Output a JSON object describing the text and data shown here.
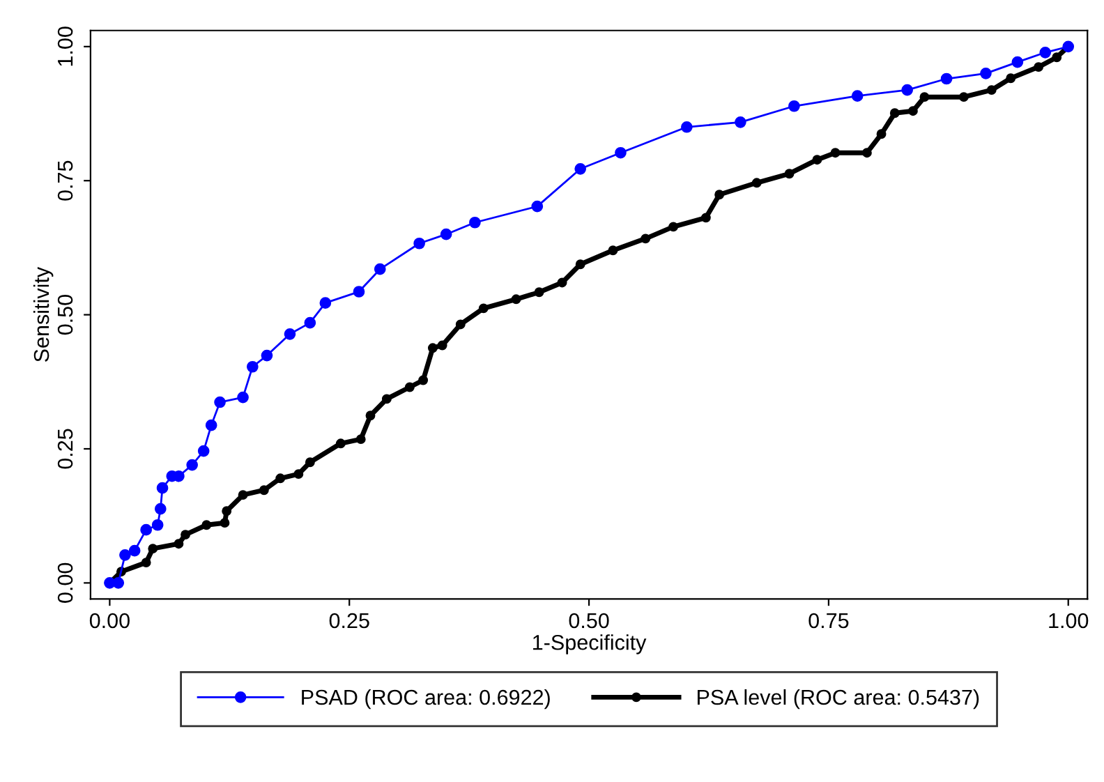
{
  "chart_data": {
    "type": "line",
    "xlabel": "1-Specificity",
    "ylabel": "Sensitivity",
    "xlim": [
      -0.02,
      1.02
    ],
    "ylim": [
      -0.03,
      1.03
    ],
    "xticks": [
      {
        "value": 0,
        "label": "0.00"
      },
      {
        "value": 0.25,
        "label": "0.25"
      },
      {
        "value": 0.5,
        "label": "0.50"
      },
      {
        "value": 0.75,
        "label": "0.75"
      },
      {
        "value": 1,
        "label": "1.00"
      }
    ],
    "yticks": [
      {
        "value": 0,
        "label": "0.00"
      },
      {
        "value": 0.25,
        "label": "0.25"
      },
      {
        "value": 0.5,
        "label": "0.50"
      },
      {
        "value": 0.75,
        "label": "0.75"
      },
      {
        "value": 1,
        "label": "1.00"
      }
    ],
    "grid": false,
    "legend": "bottom",
    "marker": "circle",
    "line_style": "solid",
    "series": [
      {
        "name": "PSAD (ROC area: 0.6922)",
        "color": "#0000ff",
        "x": [
          0,
          0.009,
          0.016,
          0.026,
          0.038,
          0.05,
          0.053,
          0.055,
          0.065,
          0.072,
          0.086,
          0.098,
          0.106,
          0.115,
          0.139,
          0.149,
          0.164,
          0.188,
          0.209,
          0.225,
          0.26,
          0.282,
          0.323,
          0.351,
          0.381,
          0.446,
          0.491,
          0.533,
          0.602,
          0.658,
          0.714,
          0.78,
          0.832,
          0.873,
          0.914,
          0.947,
          0.976,
          1
        ],
        "values": [
          0,
          0,
          0.052,
          0.06,
          0.099,
          0.108,
          0.138,
          0.177,
          0.199,
          0.199,
          0.22,
          0.246,
          0.294,
          0.337,
          0.346,
          0.403,
          0.424,
          0.464,
          0.485,
          0.522,
          0.543,
          0.585,
          0.633,
          0.65,
          0.672,
          0.702,
          0.772,
          0.802,
          0.85,
          0.859,
          0.889,
          0.908,
          0.919,
          0.94,
          0.95,
          0.971,
          0.989,
          1
        ]
      },
      {
        "name": "PSA level (ROC area: 0.5437)",
        "color": "#000000",
        "x": [
          0,
          0.012,
          0.038,
          0.045,
          0.072,
          0.079,
          0.101,
          0.12,
          0.122,
          0.139,
          0.161,
          0.178,
          0.197,
          0.209,
          0.241,
          0.262,
          0.272,
          0.289,
          0.313,
          0.327,
          0.337,
          0.347,
          0.366,
          0.39,
          0.424,
          0.448,
          0.472,
          0.491,
          0.525,
          0.559,
          0.588,
          0.622,
          0.636,
          0.675,
          0.709,
          0.738,
          0.757,
          0.79,
          0.805,
          0.819,
          0.838,
          0.85,
          0.891,
          0.92,
          0.94,
          0.969,
          0.988,
          1
        ],
        "values": [
          0,
          0.021,
          0.038,
          0.064,
          0.073,
          0.09,
          0.108,
          0.112,
          0.134,
          0.164,
          0.173,
          0.195,
          0.203,
          0.225,
          0.26,
          0.268,
          0.312,
          0.343,
          0.365,
          0.378,
          0.438,
          0.443,
          0.482,
          0.512,
          0.529,
          0.542,
          0.56,
          0.594,
          0.62,
          0.642,
          0.664,
          0.681,
          0.724,
          0.746,
          0.763,
          0.789,
          0.802,
          0.802,
          0.837,
          0.876,
          0.88,
          0.906,
          0.906,
          0.919,
          0.941,
          0.962,
          0.98,
          1
        ]
      }
    ]
  }
}
